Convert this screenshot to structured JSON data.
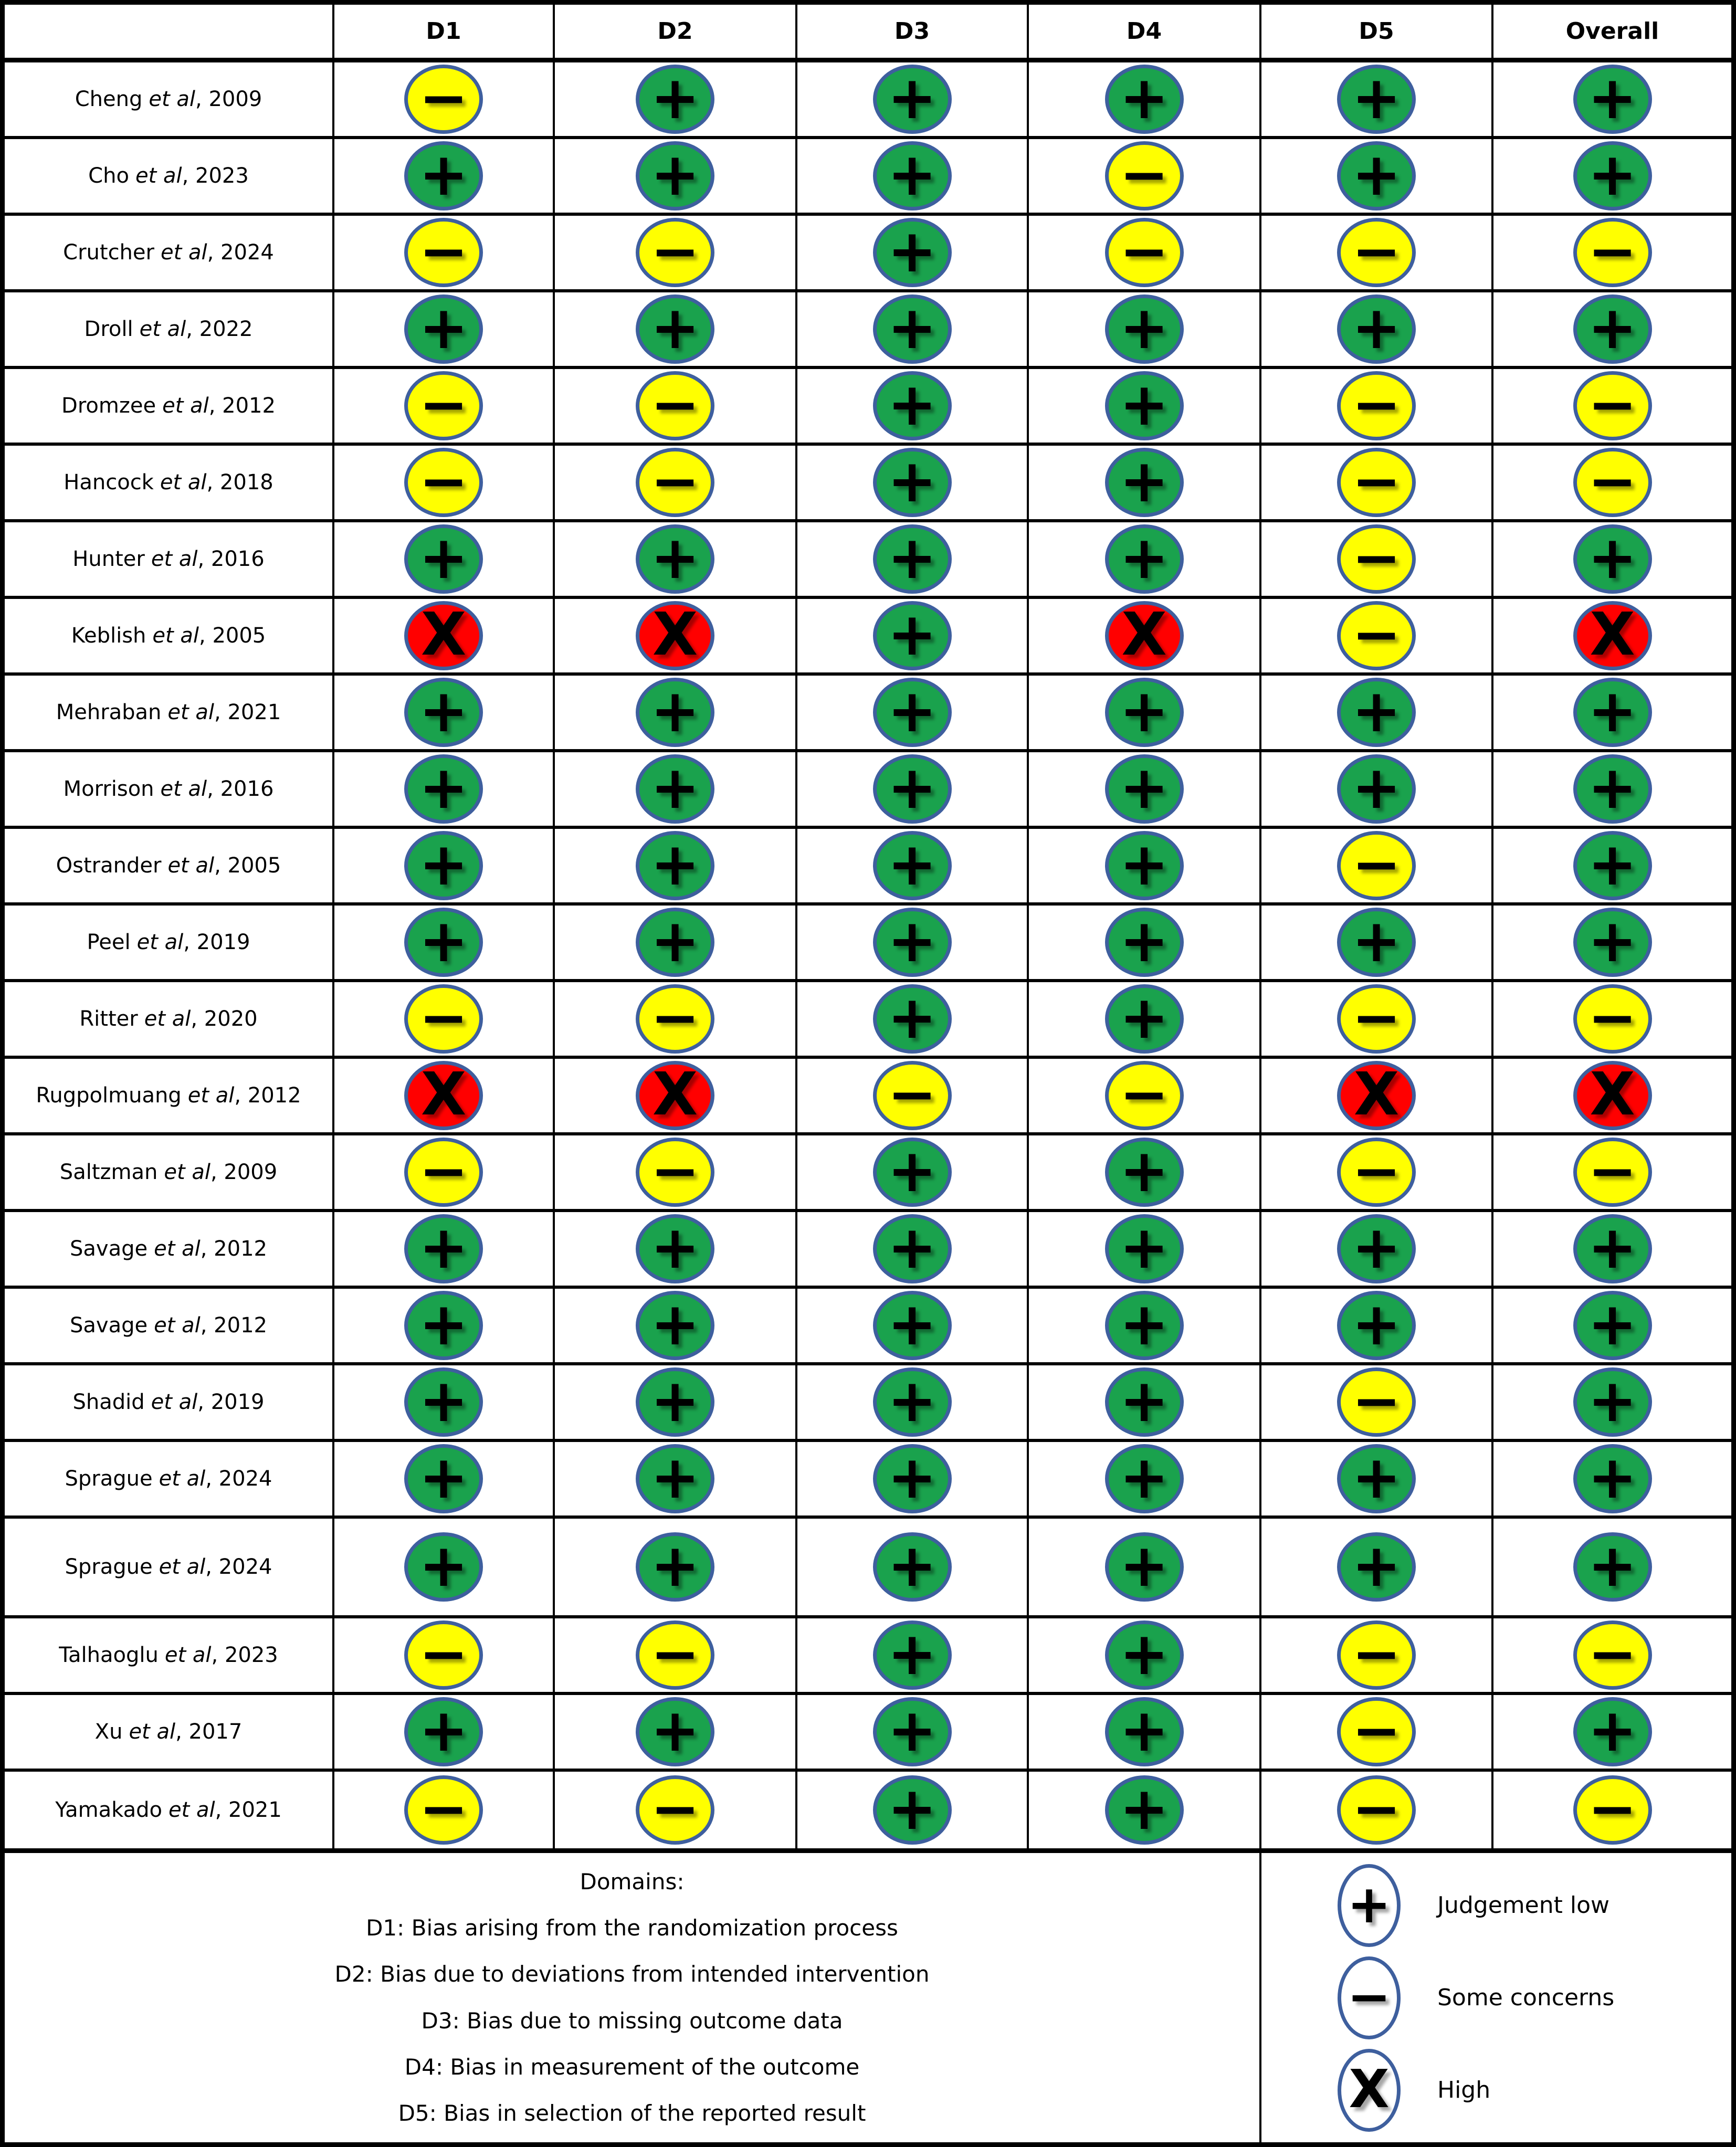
{
  "chart_data": {
    "type": "table",
    "title": "",
    "columns": [
      "D1",
      "D2",
      "D3",
      "D4",
      "D5",
      "Overall"
    ],
    "rows": [
      {
        "author": "Cheng",
        "etal": "et al",
        "year": ", 2009",
        "judgements": [
          "concerns",
          "low",
          "low",
          "low",
          "low",
          "low"
        ]
      },
      {
        "author": "Cho",
        "etal": "et al",
        "year": ", 2023",
        "judgements": [
          "low",
          "low",
          "low",
          "concerns",
          "low",
          "low"
        ]
      },
      {
        "author": "Crutcher",
        "etal": "et al",
        "year": ", 2024",
        "judgements": [
          "concerns",
          "concerns",
          "low",
          "concerns",
          "concerns",
          "concerns"
        ]
      },
      {
        "author": "Droll",
        "etal": "et al",
        "year": ", 2022",
        "judgements": [
          "low",
          "low",
          "low",
          "low",
          "low",
          "low"
        ]
      },
      {
        "author": "Dromzee",
        "etal": "et al",
        "year": ", 2012",
        "judgements": [
          "concerns",
          "concerns",
          "low",
          "low",
          "concerns",
          "concerns"
        ]
      },
      {
        "author": "Hancock",
        "etal": "et al",
        "year": ", 2018",
        "judgements": [
          "concerns",
          "concerns",
          "low",
          "low",
          "concerns",
          "concerns"
        ]
      },
      {
        "author": "Hunter",
        "etal": "et al",
        "year": ", 2016",
        "judgements": [
          "low",
          "low",
          "low",
          "low",
          "concerns",
          "low"
        ]
      },
      {
        "author": "Keblish",
        "etal": "et al",
        "year": ", 2005",
        "judgements": [
          "high",
          "high",
          "low",
          "high",
          "concerns",
          "high"
        ]
      },
      {
        "author": "Mehraban",
        "etal": "et al",
        "year": ", 2021",
        "judgements": [
          "low",
          "low",
          "low",
          "low",
          "low",
          "low"
        ]
      },
      {
        "author": "Morrison",
        "etal": "et al",
        "year": ", 2016",
        "judgements": [
          "low",
          "low",
          "low",
          "low",
          "low",
          "low"
        ]
      },
      {
        "author": "Ostrander",
        "etal": "et al",
        "year": ", 2005",
        "judgements": [
          "low",
          "low",
          "low",
          "low",
          "concerns",
          "low"
        ]
      },
      {
        "author": "Peel",
        "etal": "et al",
        "year": ", 2019",
        "judgements": [
          "low",
          "low",
          "low",
          "low",
          "low",
          "low"
        ]
      },
      {
        "author": "Ritter",
        "etal": "et al",
        "year": ", 2020",
        "judgements": [
          "concerns",
          "concerns",
          "low",
          "low",
          "concerns",
          "concerns"
        ]
      },
      {
        "author": "Rugpolmuang",
        "etal": "et al",
        "year": ", 2012",
        "judgements": [
          "high",
          "high",
          "concerns",
          "concerns",
          "high",
          "high"
        ]
      },
      {
        "author": "Saltzman",
        "etal": "et al",
        "year": ", 2009",
        "judgements": [
          "concerns",
          "concerns",
          "low",
          "low",
          "concerns",
          "concerns"
        ]
      },
      {
        "author": "Savage",
        "etal": "et al",
        "year": ", 2012",
        "judgements": [
          "low",
          "low",
          "low",
          "low",
          "low",
          "low"
        ]
      },
      {
        "author": "Savage",
        "etal": "et al",
        "year": ", 2012",
        "judgements": [
          "low",
          "low",
          "low",
          "low",
          "low",
          "low"
        ]
      },
      {
        "author": "Shadid",
        "etal": "et al",
        "year": ", 2019",
        "judgements": [
          "low",
          "low",
          "low",
          "low",
          "concerns",
          "low"
        ]
      },
      {
        "author": "Sprague",
        "etal": "et al",
        "year": ", 2024",
        "judgements": [
          "low",
          "low",
          "low",
          "low",
          "low",
          "low"
        ]
      },
      {
        "author": "Sprague",
        "etal": "et al",
        "year": ", 2024",
        "judgements": [
          "low",
          "low",
          "low",
          "low",
          "low",
          "low"
        ]
      },
      {
        "author": "Talhaoglu",
        "etal": "et al",
        "year": ", 2023",
        "judgements": [
          "concerns",
          "concerns",
          "low",
          "low",
          "concerns",
          "concerns"
        ]
      },
      {
        "author": "Xu",
        "etal": "et al",
        "year": ", 2017",
        "judgements": [
          "low",
          "low",
          "low",
          "low",
          "concerns",
          "low"
        ]
      },
      {
        "author": "Yamakado",
        "etal": "et al",
        "year": ", 2021",
        "judgements": [
          "concerns",
          "concerns",
          "low",
          "low",
          "concerns",
          "concerns"
        ]
      }
    ]
  },
  "header": {
    "columns": [
      "",
      "D1",
      "D2",
      "D3",
      "D4",
      "D5",
      "Overall"
    ]
  },
  "symbols": {
    "low": "+",
    "concerns": "−",
    "high": "X"
  },
  "colors": {
    "low": "#1AA24D",
    "concerns": "#FFFF00",
    "high": "#FF0000",
    "circle_border": "#3E5F9E",
    "grid": "#000000"
  },
  "footer": {
    "title": "Domains:",
    "domains": [
      "D1: Bias arising from the randomization process",
      "D2: Bias due to deviations from intended intervention",
      "D3: Bias due to missing outcome data",
      "D4: Bias in measurement of the outcome",
      "D5: Bias in selection of the reported result"
    ]
  },
  "legend": {
    "items": [
      {
        "level": "low",
        "label": "Judgement low"
      },
      {
        "level": "concerns",
        "label": "Some concerns"
      },
      {
        "level": "high",
        "label": "High"
      }
    ]
  }
}
